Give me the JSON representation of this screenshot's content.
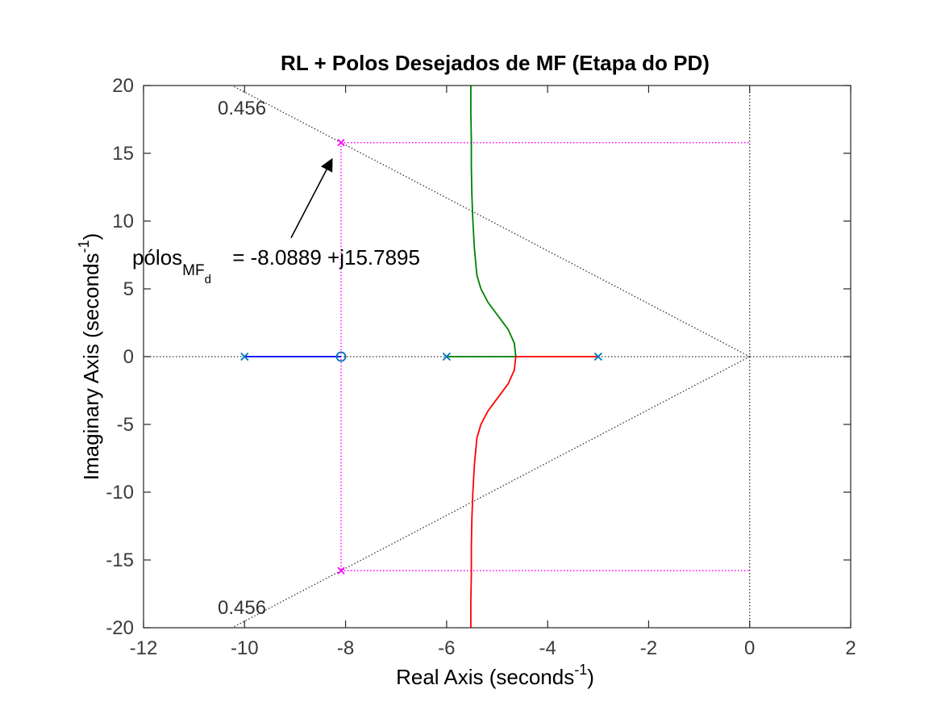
{
  "chart_data": {
    "type": "line",
    "title": "RL + Polos Desejados de MF (Etapa do PD)",
    "xlabel": "Real Axis (seconds",
    "xlabel_sup": "-1",
    "xlabel_end": ")",
    "ylabel": "Imaginary Axis (seconds",
    "ylabel_sup": "-1",
    "ylabel_end": ")",
    "xlim": [
      -12,
      2
    ],
    "ylim": [
      -20,
      20
    ],
    "xticks": [
      "-12",
      "-10",
      "-8",
      "-6",
      "-4",
      "-2",
      "0",
      "2"
    ],
    "yticks": [
      "-20",
      "-15",
      "-10",
      "-5",
      "0",
      "5",
      "10",
      "15",
      "20"
    ],
    "grid": false,
    "open_loop_poles": [
      {
        "re": -10,
        "im": 0
      },
      {
        "re": -6,
        "im": 0
      },
      {
        "re": -3,
        "im": 0
      }
    ],
    "open_loop_zeros": [
      {
        "re": -8.0889,
        "im": 0
      }
    ],
    "desired_poles": [
      {
        "re": -8.0889,
        "im": 15.7895
      },
      {
        "re": -8.0889,
        "im": -15.7895
      }
    ],
    "damping_ratio": 0.456,
    "damping_labels": [
      "0.456",
      "0.456"
    ],
    "series": [
      {
        "color": "#0000ff",
        "points": [
          [
            -10,
            0
          ],
          [
            -8.0889,
            0
          ]
        ]
      },
      {
        "color": "#008000",
        "points": [
          [
            -6,
            0
          ],
          [
            -4.63,
            0
          ],
          [
            -4.66,
            1.0
          ],
          [
            -4.78,
            2.0
          ],
          [
            -4.98,
            3.0
          ],
          [
            -5.18,
            4.0
          ],
          [
            -5.32,
            5.0
          ],
          [
            -5.4,
            6.0
          ],
          [
            -5.45,
            8.0
          ],
          [
            -5.48,
            10.0
          ],
          [
            -5.5,
            12.0
          ],
          [
            -5.51,
            14.0
          ],
          [
            -5.51,
            16.0
          ],
          [
            -5.52,
            18.0
          ],
          [
            -5.52,
            20.0
          ]
        ]
      },
      {
        "color": "#ff0000",
        "points": [
          [
            -3,
            0
          ],
          [
            -4.63,
            0
          ],
          [
            -4.66,
            -1.0
          ],
          [
            -4.78,
            -2.0
          ],
          [
            -4.98,
            -3.0
          ],
          [
            -5.18,
            -4.0
          ],
          [
            -5.32,
            -5.0
          ],
          [
            -5.4,
            -6.0
          ],
          [
            -5.45,
            -8.0
          ],
          [
            -5.48,
            -10.0
          ],
          [
            -5.5,
            -12.0
          ],
          [
            -5.51,
            -14.0
          ],
          [
            -5.51,
            -16.0
          ],
          [
            -5.52,
            -18.0
          ],
          [
            -5.52,
            -20.0
          ]
        ]
      }
    ],
    "annotation": {
      "text_main": "pólos",
      "text_sub": "MF",
      "text_subsub": "d",
      "text_rest": " = -8.0889 +j15.7895",
      "anchor": {
        "re": -8.0889,
        "im": 15.7895
      }
    },
    "colors": {
      "axes": "#262626",
      "pole_marker": "#0072bd",
      "desired_pole": "#ff00ff",
      "guide_line": "#000000"
    }
  }
}
